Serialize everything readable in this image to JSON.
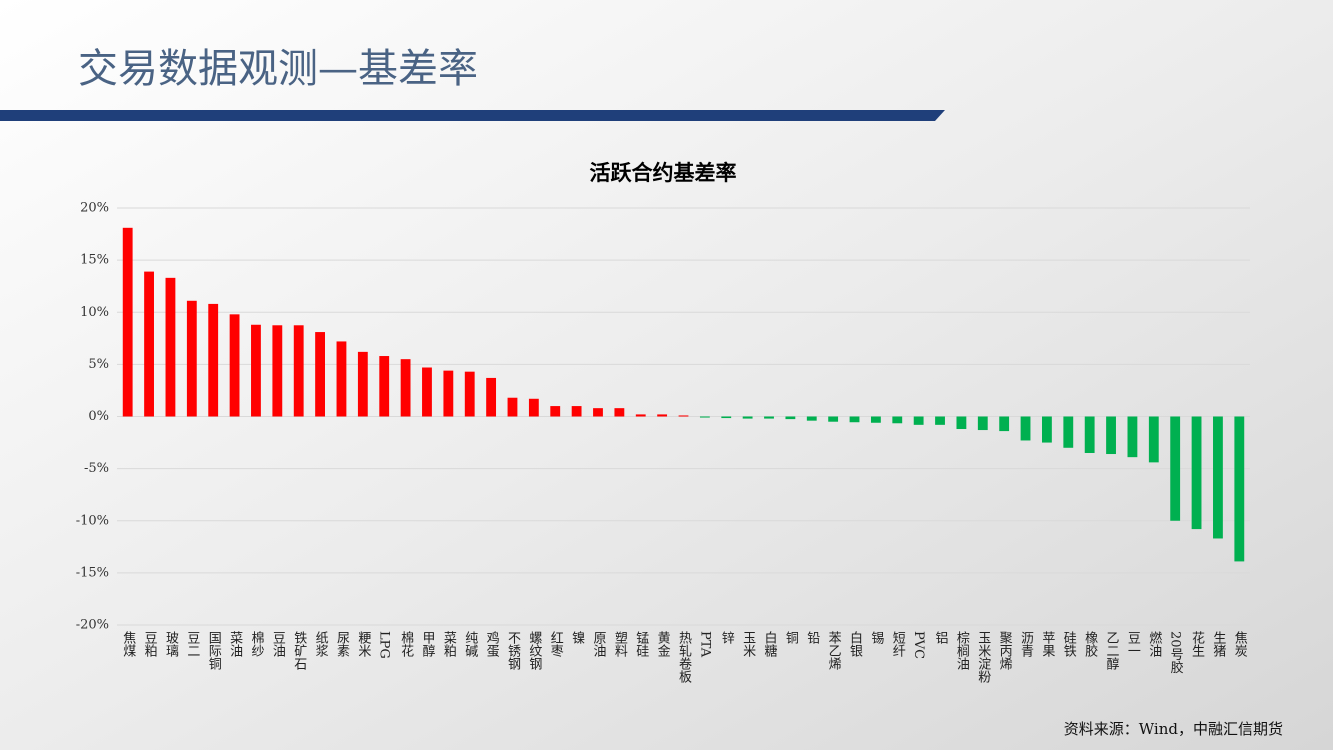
{
  "header": {
    "title": "交易数据观测—基差率"
  },
  "chart_data": {
    "type": "bar",
    "title": "活跃合约基差率",
    "categories": [
      "焦煤",
      "豆粕",
      "玻璃",
      "豆二",
      "国际铜",
      "菜油",
      "棉纱",
      "豆油",
      "铁矿石",
      "纸浆",
      "尿素",
      "粳米",
      "LPG",
      "棉花",
      "甲醇",
      "菜粕",
      "纯碱",
      "鸡蛋",
      "不锈钢",
      "螺纹钢",
      "红枣",
      "镍",
      "原油",
      "塑料",
      "锰硅",
      "黄金",
      "热轧卷板",
      "PTA",
      "锌",
      "玉米",
      "白糖",
      "铜",
      "铅",
      "苯乙烯",
      "白银",
      "锡",
      "短纤",
      "PVC",
      "铝",
      "棕榈油",
      "玉米淀粉",
      "聚丙烯",
      "沥青",
      "苹果",
      "硅铁",
      "橡胶",
      "乙二醇",
      "豆一",
      "燃油",
      "20号胶",
      "花生",
      "生猪",
      "焦炭"
    ],
    "values": [
      18.1,
      13.9,
      13.3,
      11.1,
      10.8,
      9.8,
      8.8,
      8.75,
      8.75,
      8.1,
      7.2,
      6.2,
      5.8,
      5.5,
      4.7,
      4.4,
      4.3,
      3.7,
      1.8,
      1.7,
      1.0,
      1.0,
      0.8,
      0.8,
      0.2,
      0.2,
      0.1,
      -0.1,
      -0.15,
      -0.2,
      -0.2,
      -0.25,
      -0.4,
      -0.5,
      -0.55,
      -0.6,
      -0.65,
      -0.8,
      -0.8,
      -1.2,
      -1.3,
      -1.4,
      -2.3,
      -2.5,
      -3.0,
      -3.5,
      -3.6,
      -3.9,
      -4.4,
      -10.0,
      -10.8,
      -11.7,
      -13.9
    ],
    "positive_color": "#ff0000",
    "negative_color": "#00b050",
    "ylim": [
      -20,
      20
    ],
    "yticks": [
      {
        "value": -20,
        "label": "-20%"
      },
      {
        "value": -15,
        "label": "-15%"
      },
      {
        "value": -10,
        "label": "-10%"
      },
      {
        "value": -5,
        "label": "-5%"
      },
      {
        "value": 0,
        "label": "0%"
      },
      {
        "value": 5,
        "label": "5%"
      },
      {
        "value": 10,
        "label": "10%"
      },
      {
        "value": 15,
        "label": "15%"
      },
      {
        "value": 20,
        "label": "20%"
      }
    ],
    "grid": true,
    "source": "资料来源：Wind，中融汇信期货"
  }
}
